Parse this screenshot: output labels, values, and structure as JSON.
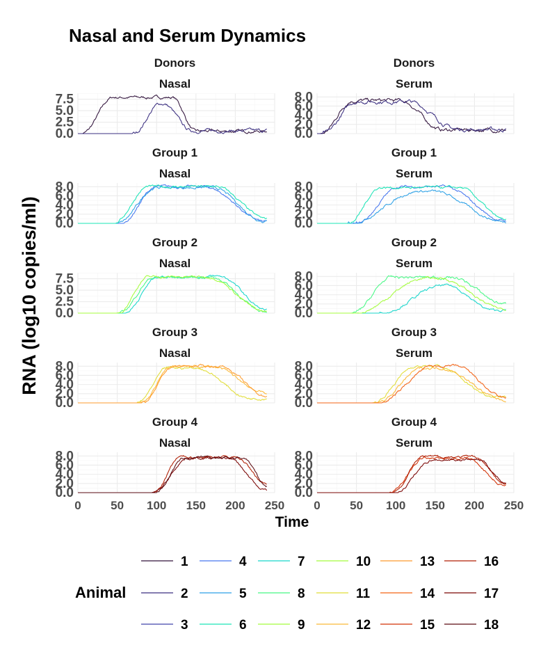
{
  "chart_data": {
    "type": "line",
    "title": "Nasal and Serum Dynamics",
    "xlabel": "Time",
    "ylabel": "RNA (log10 copies/ml)",
    "xlim": [
      0,
      250
    ],
    "x_ticks": [
      "0",
      "50",
      "100",
      "150",
      "200",
      "250"
    ],
    "grid": true,
    "legend": {
      "title": "Animal",
      "placement": "bottom",
      "entries": [
        "1",
        "2",
        "3",
        "4",
        "5",
        "6",
        "7",
        "8",
        "9",
        "10",
        "11",
        "12",
        "13",
        "14",
        "15",
        "16",
        "17",
        "18"
      ]
    },
    "animal_colors": {
      "1": "#30123b",
      "2": "#3b2f80",
      "3": "#4145ab",
      "4": "#4777ef",
      "5": "#2ca1e6",
      "6": "#1ae4b6",
      "7": "#18d6cb",
      "8": "#46f884",
      "9": "#a4fc3c",
      "10": "#a2fc3c",
      "11": "#e1dd37",
      "12": "#fbb938",
      "13": "#fe9b2d",
      "14": "#f36315",
      "15": "#d23105",
      "16": "#b01e03",
      "17": "#7a0403",
      "18": "#5a0a10"
    },
    "facets": [
      {
        "group": "Donors",
        "sample": "Nasal",
        "y_ticks": [
          "0.0",
          "2.5",
          "5.0",
          "7.5"
        ],
        "ylim": [
          0,
          8.8
        ],
        "series": [
          {
            "animal": "1",
            "onset": 5,
            "rise": 40,
            "peak": 7.9,
            "plateau_end": 120,
            "decay_end": 150,
            "tail": 0.5,
            "jitter": 0.35
          },
          {
            "animal": "2",
            "onset": 70,
            "rise": 35,
            "peak": 6.5,
            "plateau_end": 108,
            "decay_end": 145,
            "tail": 0.6,
            "jitter": 0.4
          }
        ]
      },
      {
        "group": "Donors",
        "sample": "Serum",
        "y_ticks": [
          "0.0",
          "2.0",
          "4.0",
          "6.0",
          "8.0"
        ],
        "ylim": [
          0,
          8.8
        ],
        "series": [
          {
            "animal": "1",
            "onset": 5,
            "rise": 40,
            "peak": 7.2,
            "plateau_end": 105,
            "decay_end": 160,
            "tail": 0.8,
            "jitter": 0.45
          },
          {
            "animal": "2",
            "onset": 8,
            "rise": 42,
            "peak": 7.0,
            "plateau_end": 115,
            "decay_end": 180,
            "tail": 0.9,
            "jitter": 0.45
          }
        ]
      },
      {
        "group": "Group 1",
        "sample": "Nasal",
        "y_ticks": [
          "0.0",
          "2.0",
          "4.0",
          "6.0",
          "8.0"
        ],
        "ylim": [
          0,
          8.8
        ],
        "series": [
          {
            "animal": "4",
            "onset": 55,
            "rise": 45,
            "peak": 8.0,
            "plateau_end": 160,
            "decay_end": 240,
            "tail": 0.3,
            "jitter": 0.3
          },
          {
            "animal": "5",
            "onset": 50,
            "rise": 50,
            "peak": 7.8,
            "plateau_end": 170,
            "decay_end": 238,
            "tail": 0.5,
            "jitter": 0.3
          },
          {
            "animal": "6",
            "onset": 45,
            "rise": 45,
            "peak": 8.0,
            "plateau_end": 175,
            "decay_end": 240,
            "tail": 1.0,
            "jitter": 0.3
          }
        ]
      },
      {
        "group": "Group 1",
        "sample": "Serum",
        "y_ticks": [
          "0.0",
          "2.0",
          "4.0",
          "6.0",
          "8.0"
        ],
        "ylim": [
          0,
          8.8
        ],
        "series": [
          {
            "animal": "4",
            "onset": 50,
            "rise": 55,
            "peak": 8.0,
            "plateau_end": 160,
            "decay_end": 240,
            "tail": 0.5,
            "jitter": 0.3
          },
          {
            "animal": "5",
            "onset": 40,
            "rise": 90,
            "peak": 7.0,
            "plateau_end": 145,
            "decay_end": 238,
            "tail": 0.4,
            "jitter": 0.3
          },
          {
            "animal": "6",
            "onset": 40,
            "rise": 40,
            "peak": 7.8,
            "plateau_end": 180,
            "decay_end": 240,
            "tail": 0.8,
            "jitter": 0.3
          }
        ]
      },
      {
        "group": "Group 2",
        "sample": "Nasal",
        "y_ticks": [
          "0.0",
          "2.5",
          "5.0",
          "7.5"
        ],
        "ylim": [
          0,
          8.8
        ],
        "series": [
          {
            "animal": "7",
            "onset": 58,
            "rise": 45,
            "peak": 8.0,
            "plateau_end": 180,
            "decay_end": 240,
            "tail": 0.7,
            "jitter": 0.3
          },
          {
            "animal": "8",
            "onset": 52,
            "rise": 45,
            "peak": 7.8,
            "plateau_end": 170,
            "decay_end": 236,
            "tail": 0.5,
            "jitter": 0.3
          },
          {
            "animal": "9",
            "onset": 50,
            "rise": 40,
            "peak": 7.9,
            "plateau_end": 165,
            "decay_end": 238,
            "tail": 0.4,
            "jitter": 0.3
          }
        ]
      },
      {
        "group": "Group 2",
        "sample": "Serum",
        "y_ticks": [
          "0.0",
          "2.0",
          "4.0",
          "6.0",
          "8.0"
        ],
        "ylim": [
          0,
          8.8
        ],
        "series": [
          {
            "animal": "7",
            "onset": 80,
            "rise": 80,
            "peak": 6.0,
            "plateau_end": 165,
            "decay_end": 225,
            "tail": 0.6,
            "jitter": 0.3
          },
          {
            "animal": "8",
            "onset": 45,
            "rise": 50,
            "peak": 7.8,
            "plateau_end": 170,
            "decay_end": 240,
            "tail": 2.0,
            "jitter": 0.35
          },
          {
            "animal": "9",
            "onset": 48,
            "rise": 90,
            "peak": 7.6,
            "plateau_end": 155,
            "decay_end": 238,
            "tail": 0.9,
            "jitter": 0.3
          }
        ]
      },
      {
        "group": "Group 3",
        "sample": "Nasal",
        "y_ticks": [
          "0.0",
          "2.0",
          "4.0",
          "6.0",
          "8.0"
        ],
        "ylim": [
          0,
          8.8
        ],
        "series": [
          {
            "animal": "11",
            "onset": 75,
            "rise": 40,
            "peak": 7.6,
            "plateau_end": 150,
            "decay_end": 220,
            "tail": 1.0,
            "jitter": 0.3
          },
          {
            "animal": "12",
            "onset": 80,
            "rise": 40,
            "peak": 7.9,
            "plateau_end": 170,
            "decay_end": 240,
            "tail": 2.2,
            "jitter": 0.3
          },
          {
            "animal": "13",
            "onset": 82,
            "rise": 40,
            "peak": 8.0,
            "plateau_end": 180,
            "decay_end": 240,
            "tail": 1.5,
            "jitter": 0.3
          }
        ]
      },
      {
        "group": "Group 3",
        "sample": "Serum",
        "y_ticks": [
          "0.0",
          "2.0",
          "4.0",
          "6.0",
          "8.0"
        ],
        "ylim": [
          0,
          8.8
        ],
        "series": [
          {
            "animal": "11",
            "onset": 70,
            "rise": 55,
            "peak": 8.0,
            "plateau_end": 150,
            "decay_end": 225,
            "tail": 1.5,
            "jitter": 0.3
          },
          {
            "animal": "12",
            "onset": 75,
            "rise": 60,
            "peak": 7.6,
            "plateau_end": 155,
            "decay_end": 240,
            "tail": 0.6,
            "jitter": 0.3
          },
          {
            "animal": "14",
            "onset": 78,
            "rise": 70,
            "peak": 8.0,
            "plateau_end": 175,
            "decay_end": 240,
            "tail": 1.0,
            "jitter": 0.3
          }
        ]
      },
      {
        "group": "Group 4",
        "sample": "Nasal",
        "y_ticks": [
          "0.0",
          "2.0",
          "4.0",
          "6.0",
          "8.0"
        ],
        "ylim": [
          0,
          8.8
        ],
        "series": [
          {
            "animal": "16",
            "onset": 96,
            "rise": 35,
            "peak": 7.8,
            "plateau_end": 200,
            "decay_end": 240,
            "tail": 2.0,
            "jitter": 0.3
          },
          {
            "animal": "17",
            "onset": 95,
            "rise": 45,
            "peak": 7.5,
            "plateau_end": 190,
            "decay_end": 240,
            "tail": 0.5,
            "jitter": 0.3
          },
          {
            "animal": "18",
            "onset": 97,
            "rise": 40,
            "peak": 7.6,
            "plateau_end": 210,
            "decay_end": 240,
            "tail": 1.5,
            "jitter": 0.3
          }
        ]
      },
      {
        "group": "Group 4",
        "sample": "Serum",
        "y_ticks": [
          "0.0",
          "2.0",
          "4.0",
          "6.0",
          "8.0"
        ],
        "ylim": [
          0,
          8.8
        ],
        "series": [
          {
            "animal": "15",
            "onset": 92,
            "rise": 45,
            "peak": 7.5,
            "plateau_end": 190,
            "decay_end": 240,
            "tail": 1.5,
            "jitter": 0.3
          },
          {
            "animal": "16",
            "onset": 95,
            "rise": 40,
            "peak": 7.8,
            "plateau_end": 200,
            "decay_end": 240,
            "tail": 1.8,
            "jitter": 0.3
          },
          {
            "animal": "17",
            "onset": 98,
            "rise": 50,
            "peak": 7.2,
            "plateau_end": 205,
            "decay_end": 240,
            "tail": 2.2,
            "jitter": 0.3
          }
        ]
      }
    ]
  }
}
